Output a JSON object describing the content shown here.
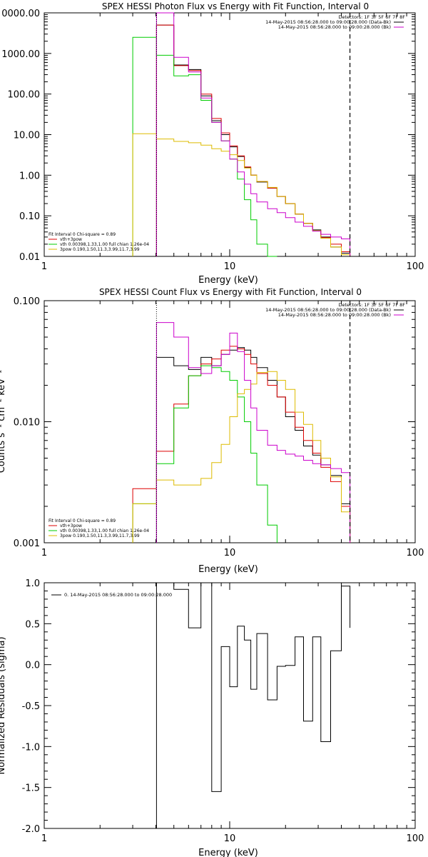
{
  "chart_data": [
    {
      "type": "line",
      "title": "SPEX HESSI Photon Flux vs Energy with Fit Function, Interval 0",
      "xlabel": "Energy (keV)",
      "ylabel": "",
      "xscale": "log",
      "yscale": "log",
      "xlim": [
        1,
        100
      ],
      "ylim": [
        0.01,
        10000
      ],
      "x_ticks": [
        "1",
        "10",
        "100"
      ],
      "y_ticks": [
        "0.01",
        "0.10",
        "1.00",
        "10.00",
        "100.00",
        "1000.00",
        "0000.00"
      ],
      "vlines": {
        "dotted": 4.03,
        "dashed": 44.5
      },
      "legend_top": [
        {
          "text": "Detectors: 1F 3F 5F 6F 7F 8F",
          "color": ""
        },
        {
          "text": "14-May-2015 08:56:28.000 to 09:00:28.000 (Data-Bk)",
          "color": "#000000"
        },
        {
          "text": "14-May-2015 08:56:28.000 to 09:00:28.000 (Bk)",
          "color": "#cc00cc"
        }
      ],
      "legend_bottom": [
        {
          "text": "Fit Interval 0   Chi-square = 0.89",
          "color": ""
        },
        {
          "text": "vth+3pow",
          "color": "#dd0000"
        },
        {
          "text": "vth 0.00398,1.33,1.00   full chian 1.26e-04",
          "color": "#00cc00"
        },
        {
          "text": "3pow 0.190,1.50,11.3,3.99,11.7,3.99",
          "color": "#ddbb00"
        }
      ],
      "edges": [
        3,
        4.03,
        5,
        6,
        7,
        8,
        9,
        10,
        11,
        12,
        13,
        14,
        16,
        18,
        20,
        22.5,
        25,
        28,
        31,
        35,
        40,
        44.5
      ],
      "series": [
        {
          "color": "#000000",
          "values": [
            null,
            5000,
            520,
            400,
            90,
            22,
            10,
            5,
            2.9,
            1.55,
            1.0,
            0.68,
            0.48,
            0.3,
            0.2,
            0.11,
            0.065,
            0.045,
            0.03,
            0.017,
            0.012
          ]
        },
        {
          "color": "#dd0000",
          "values": [
            null,
            5000,
            500,
            380,
            100,
            25,
            11,
            5.3,
            3.0,
            1.6,
            1.0,
            0.7,
            0.48,
            0.3,
            0.2,
            0.11,
            0.065,
            0.043,
            0.029,
            0.02,
            0.013
          ]
        },
        {
          "color": "#00cc00",
          "values": [
            2500,
            900,
            280,
            300,
            70,
            20,
            7,
            2.5,
            0.8,
            0.25,
            0.08,
            0.02,
            0.004,
            null,
            null,
            null,
            null,
            null,
            null,
            null,
            null
          ]
        },
        {
          "color": "#ddbb00",
          "values": [
            10.5,
            7.8,
            6.8,
            6.3,
            5.5,
            4.5,
            3.9,
            3.2,
            2.3,
            1.5,
            1.0,
            0.7,
            0.5,
            0.3,
            0.2,
            0.11,
            0.065,
            0.043,
            0.028,
            0.017,
            0.011
          ]
        },
        {
          "color": "#cc00cc",
          "values": [
            null,
            10000,
            800,
            350,
            80,
            20,
            7,
            2.5,
            1.2,
            0.6,
            0.35,
            0.22,
            0.15,
            0.12,
            0.09,
            0.07,
            0.055,
            0.042,
            0.035,
            0.03,
            0.027
          ]
        }
      ]
    },
    {
      "type": "line",
      "title": "SPEX HESSI Count Flux vs Energy with Fit Function, Interval 0",
      "xlabel": "Energy (keV)",
      "ylabel": "Counts s⁻¹ cm⁻² keV⁻¹",
      "xscale": "log",
      "yscale": "log",
      "xlim": [
        1,
        100
      ],
      "ylim": [
        0.001,
        0.1
      ],
      "x_ticks": [
        "1",
        "10",
        "100"
      ],
      "y_ticks": [
        "0.001",
        "0.010",
        "0.100"
      ],
      "vlines": {
        "dotted": 4.03,
        "dashed": 44.5
      },
      "legend_top": [
        {
          "text": "Detectors: 1F 3F 5F 6F 7F 8F",
          "color": ""
        },
        {
          "text": "14-May-2015 08:56:28.000 to 09:00:28.000 (Data-Bk)",
          "color": "#000000"
        },
        {
          "text": "14-May-2015 08:56:28.000 to 09:00:28.000 (Bk)",
          "color": "#cc00cc"
        }
      ],
      "legend_bottom": [
        {
          "text": "Fit Interval 0   Chi-square = 0.89",
          "color": ""
        },
        {
          "text": "vth+3pow",
          "color": "#dd0000"
        },
        {
          "text": "vth 0.00398,1.33,1.00   full chian 1.26e-04",
          "color": "#00cc00"
        },
        {
          "text": "3pow 0.190,1.50,11.3,3.99,11.7,3.99",
          "color": "#ddbb00"
        }
      ],
      "edges": [
        3,
        4.03,
        5,
        6,
        7,
        8,
        9,
        10,
        11,
        12,
        13,
        14,
        16,
        18,
        20,
        22.5,
        25,
        28,
        31,
        35,
        40,
        44.5
      ],
      "series": [
        {
          "color": "#000000",
          "values": [
            null,
            0.034,
            0.029,
            0.027,
            0.034,
            0.029,
            0.036,
            0.039,
            0.041,
            0.039,
            0.034,
            0.028,
            0.022,
            0.016,
            0.011,
            0.0085,
            0.0063,
            0.0053,
            0.0044,
            0.0036,
            0.0021
          ]
        },
        {
          "color": "#dd0000",
          "values": [
            0.0028,
            0.0057,
            0.014,
            0.024,
            0.03,
            0.033,
            0.039,
            0.042,
            0.04,
            0.036,
            0.03,
            0.025,
            0.02,
            0.016,
            0.012,
            0.009,
            0.007,
            0.0055,
            0.0042,
            0.0032,
            0.002
          ]
        },
        {
          "color": "#00cc00",
          "values": [
            0.0021,
            0.0045,
            0.013,
            0.024,
            0.029,
            0.028,
            0.026,
            0.022,
            0.016,
            0.01,
            0.0055,
            0.003,
            0.0014,
            null,
            null,
            null,
            null,
            null,
            null,
            null,
            null
          ]
        },
        {
          "color": "#ddbb00",
          "values": [
            0.0021,
            0.0033,
            0.003,
            0.003,
            0.0034,
            0.0046,
            0.0065,
            0.011,
            0.017,
            0.0185,
            0.0205,
            0.0255,
            0.026,
            0.022,
            0.0185,
            0.012,
            0.0095,
            0.007,
            0.005,
            0.0035,
            0.0018
          ]
        },
        {
          "color": "#cc00cc",
          "values": [
            null,
            0.066,
            0.05,
            0.028,
            0.025,
            0.029,
            0.036,
            0.054,
            0.038,
            0.022,
            0.013,
            0.0085,
            0.0064,
            0.0058,
            0.0054,
            0.0052,
            0.0048,
            0.0045,
            0.0044,
            0.0041,
            0.0038
          ]
        }
      ]
    },
    {
      "type": "line",
      "title": "",
      "xlabel": "Energy (keV)",
      "ylabel": "Normalized Residuals (sigma)",
      "xscale": "log",
      "yscale": "linear",
      "xlim": [
        1,
        100
      ],
      "ylim": [
        -2.0,
        1.0
      ],
      "x_ticks": [
        "1",
        "10",
        "100"
      ],
      "y_ticks": [
        "-2.0",
        "-1.5",
        "-1.0",
        "-0.5",
        "0.0",
        "0.5",
        "1.0"
      ],
      "legend_top": [
        {
          "text": "0. 14-May-2015 08:56:28.000 to 09:00:28.000",
          "color": "#000000"
        }
      ],
      "edges": [
        4.03,
        5,
        6,
        7,
        8,
        9,
        10,
        11,
        12,
        13,
        14,
        16,
        18,
        20,
        22.5,
        25,
        28,
        31,
        35,
        40,
        44.5
      ],
      "series": [
        {
          "color": "#000000",
          "values": [
            1.01,
            0.92,
            0.45,
            1.0,
            -1.55,
            0.22,
            -0.27,
            0.47,
            0.3,
            -0.3,
            0.38,
            -0.43,
            -0.02,
            -0.01,
            0.34,
            -0.69,
            0.34,
            -0.94,
            0.17,
            0.96,
            0.45
          ]
        }
      ]
    }
  ]
}
